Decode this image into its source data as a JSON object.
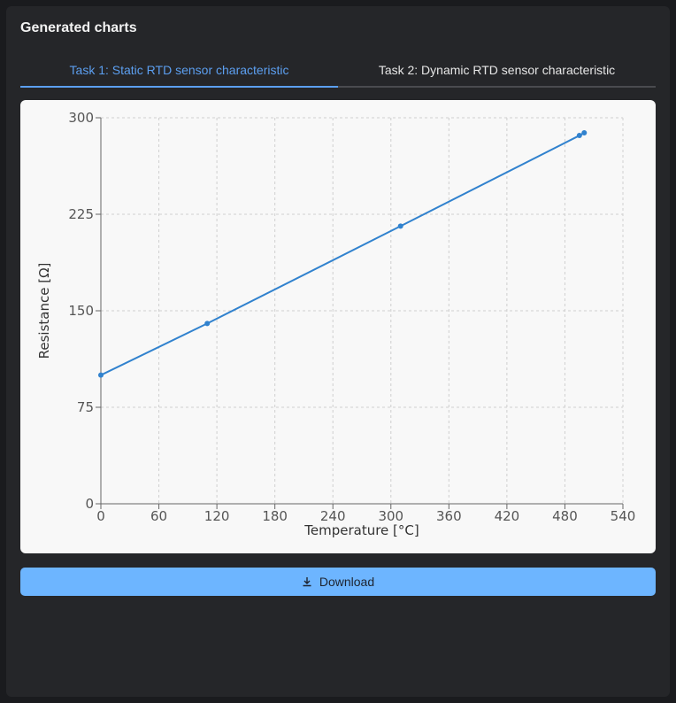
{
  "panel": {
    "title": "Generated charts"
  },
  "tabs": [
    {
      "label": "Task 1: Static RTD sensor characteristic",
      "active": true
    },
    {
      "label": "Task 2: Dynamic RTD sensor characteristic",
      "active": false
    }
  ],
  "download": {
    "label": "Download",
    "icon": "download-icon"
  },
  "colors": {
    "accent": "#5c9ff0",
    "series": "#3182ce",
    "button": "#6db5ff"
  },
  "chart_data": {
    "type": "line",
    "xlabel": "Temperature [°C]",
    "ylabel": "Resistance [Ω]",
    "xlim": [
      0,
      540
    ],
    "ylim": [
      0,
      300
    ],
    "xticks": [
      0,
      60,
      120,
      180,
      240,
      300,
      360,
      420,
      480,
      540
    ],
    "yticks": [
      0,
      75,
      150,
      225,
      300
    ],
    "grid": true,
    "series": [
      {
        "x": [
          0,
          110,
          310,
          495,
          500
        ],
        "y": [
          100,
          140.1,
          215.8,
          286.2,
          288.3
        ]
      }
    ]
  }
}
